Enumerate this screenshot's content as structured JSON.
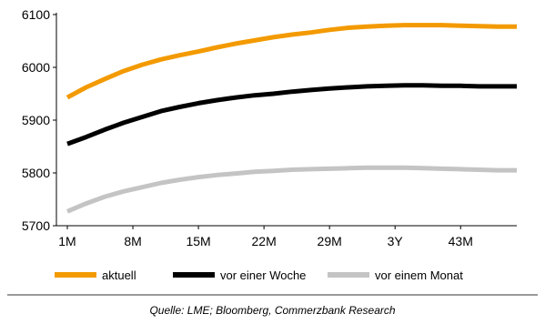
{
  "chart_data": {
    "type": "line",
    "x_tick_labels": [
      "1M",
      "8M",
      "15M",
      "22M",
      "29M",
      "3Y",
      "43M"
    ],
    "x": [
      "1M",
      "3M",
      "5M",
      "7M",
      "9M",
      "11M",
      "13M",
      "15M",
      "17M",
      "19M",
      "21M",
      "23M",
      "25M",
      "27M",
      "29M",
      "31M",
      "33M",
      "35M",
      "37M",
      "39M",
      "41M",
      "43M",
      "45M",
      "47M",
      "49M"
    ],
    "series": [
      {
        "name": "aktuell",
        "color": "#f39a00",
        "values": [
          5943,
          5962,
          5978,
          5993,
          6005,
          6015,
          6023,
          6030,
          6038,
          6045,
          6051,
          6057,
          6062,
          6066,
          6071,
          6075,
          6077,
          6079,
          6080,
          6080,
          6080,
          6079,
          6078,
          6077,
          6077
        ]
      },
      {
        "name": "vor einer Woche",
        "color": "#000000",
        "values": [
          5855,
          5868,
          5882,
          5895,
          5906,
          5917,
          5925,
          5932,
          5938,
          5943,
          5947,
          5950,
          5954,
          5957,
          5960,
          5962,
          5964,
          5965,
          5966,
          5966,
          5965,
          5965,
          5964,
          5964,
          5964
        ]
      },
      {
        "name": "vor einem Monat",
        "color": "#c4c4c4",
        "values": [
          5727,
          5742,
          5755,
          5765,
          5773,
          5781,
          5787,
          5792,
          5796,
          5799,
          5802,
          5804,
          5806,
          5807,
          5808,
          5809,
          5810,
          5810,
          5810,
          5809,
          5808,
          5807,
          5806,
          5805,
          5805
        ]
      }
    ],
    "y_ticks": [
      5700,
      5800,
      5900,
      6000,
      6100
    ],
    "ylim": [
      5700,
      6100
    ],
    "grid": false,
    "legend_position": "bottom"
  },
  "source_text": "Quelle: LME; Bloomberg, Commerzbank Research",
  "colors": {
    "axis": "#000000",
    "separator": "#9a9a9a"
  }
}
